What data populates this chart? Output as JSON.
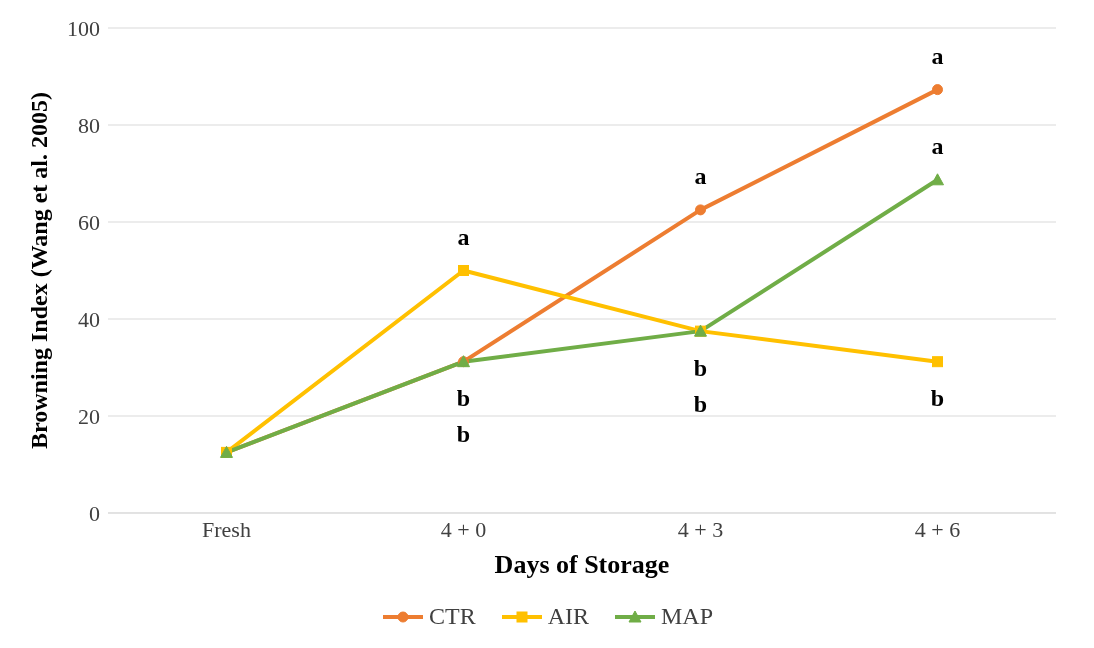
{
  "chart_data": {
    "type": "line",
    "xlabel": "Days of Storage",
    "ylabel": "Browning Index (Wang et al. 2005)",
    "categories": [
      "Fresh",
      "4 + 0",
      "4 + 3",
      "4 + 6"
    ],
    "series": [
      {
        "name": "CTR",
        "color": "#ed7d31",
        "marker": "circle",
        "values": [
          12.5,
          31.2,
          62.5,
          87.3
        ]
      },
      {
        "name": "AIR",
        "color": "#ffc000",
        "marker": "square",
        "values": [
          12.5,
          50,
          37.5,
          31.2
        ]
      },
      {
        "name": "MAP",
        "color": "#70ad47",
        "marker": "triangle",
        "values": [
          12.5,
          31.2,
          37.5,
          68.7
        ]
      }
    ],
    "ylim": [
      0,
      100
    ],
    "yticks": [
      0,
      20,
      40,
      60,
      80,
      100
    ],
    "grid": "y",
    "legend": "bottom",
    "annotations": [
      {
        "text": "a",
        "x": "4 + 0",
        "y": 50
      },
      {
        "text": "b",
        "x": "4 + 0",
        "y": 31.2
      },
      {
        "text": "b",
        "x": "4 + 0",
        "y": 31.2
      },
      {
        "text": "a",
        "x": "4 + 3",
        "y": 62.5
      },
      {
        "text": "b",
        "x": "4 + 3",
        "y": 37.5
      },
      {
        "text": "b",
        "x": "4 + 3",
        "y": 37.5
      },
      {
        "text": "a",
        "x": "4 + 6",
        "y": 87.3
      },
      {
        "text": "a",
        "x": "4 + 6",
        "y": 68.7
      },
      {
        "text": "b",
        "x": "4 + 6",
        "y": 31.2
      }
    ]
  }
}
